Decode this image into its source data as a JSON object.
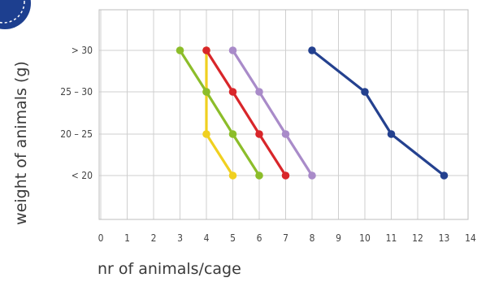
{
  "chart_data": {
    "type": "line",
    "title": "",
    "xlabel": "nr of animals/cage",
    "ylabel": "weight of animals (g)",
    "x_ticks": [
      "0",
      "1",
      "2",
      "3",
      "4",
      "5",
      "6",
      "7",
      "8",
      "9",
      "10",
      "11",
      "12",
      "13",
      "14"
    ],
    "xlim": [
      0,
      14
    ],
    "y_categories": [
      "< 20",
      "20 – 25",
      "25 – 30",
      "> 30"
    ],
    "grid": true,
    "legend": "none",
    "series": [
      {
        "color": "#f0d020",
        "points": [
          [
            4,
            "> 30"
          ],
          [
            4,
            "25 – 30"
          ],
          [
            4,
            "20 – 25"
          ],
          [
            5,
            "< 20"
          ]
        ]
      },
      {
        "color": "#8cbd2a",
        "points": [
          [
            3,
            "> 30"
          ],
          [
            4,
            "25 – 30"
          ],
          [
            5,
            "20 – 25"
          ],
          [
            6,
            "< 20"
          ]
        ]
      },
      {
        "color": "#d8262a",
        "points": [
          [
            4,
            "> 30"
          ],
          [
            5,
            "25 – 30"
          ],
          [
            6,
            "20 – 25"
          ],
          [
            7,
            "< 20"
          ]
        ]
      },
      {
        "color": "#a98bc9",
        "points": [
          [
            5,
            "> 30"
          ],
          [
            6,
            "25 – 30"
          ],
          [
            7,
            "20 – 25"
          ],
          [
            8,
            "< 20"
          ]
        ]
      },
      {
        "color": "#24418f",
        "points": [
          [
            8,
            "> 30"
          ],
          [
            10,
            "25 – 30"
          ],
          [
            11,
            "20 – 25"
          ],
          [
            13,
            "< 20"
          ]
        ]
      }
    ]
  },
  "logo": {
    "color": "#1d3f8f"
  }
}
